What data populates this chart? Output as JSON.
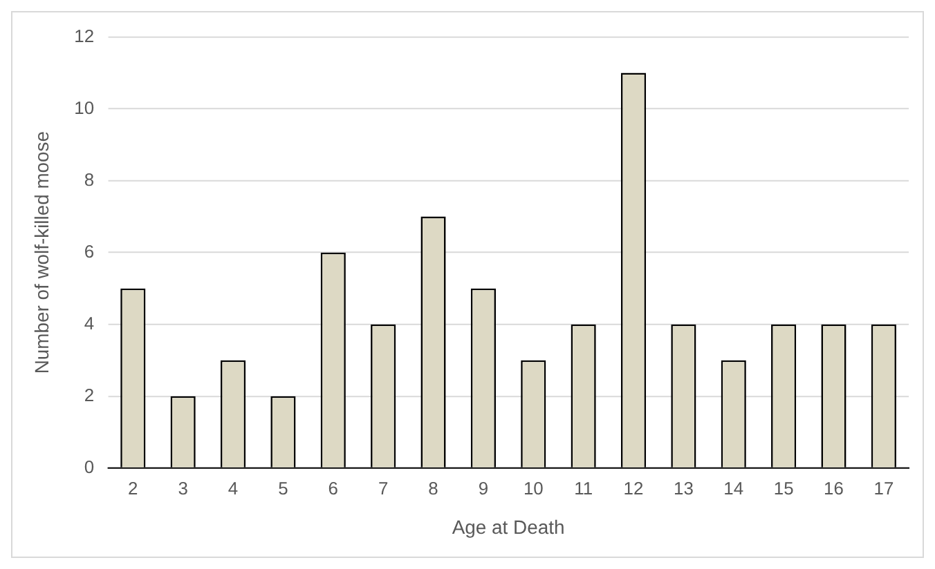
{
  "chart_data": {
    "type": "bar",
    "xlabel": "Age at Death",
    "ylabel": "Number of wolf-killed moose",
    "categories": [
      "2",
      "3",
      "4",
      "5",
      "6",
      "7",
      "8",
      "9",
      "10",
      "11",
      "12",
      "13",
      "14",
      "15",
      "16",
      "17"
    ],
    "values": [
      5,
      2,
      3,
      2,
      6,
      4,
      7,
      5,
      3,
      4,
      11,
      4,
      3,
      4,
      4,
      4
    ],
    "color": "#ddd9c4",
    "ylim": [
      0,
      12
    ],
    "yticks": [
      0,
      2,
      4,
      6,
      8,
      10,
      12
    ],
    "grid": "y",
    "legend": false
  }
}
